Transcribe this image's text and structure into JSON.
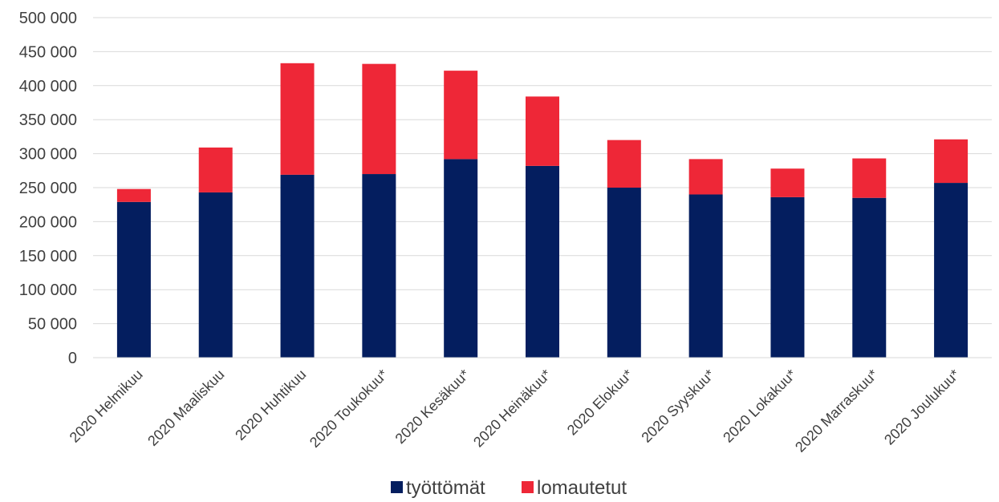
{
  "chart_data": {
    "type": "bar",
    "stacked": true,
    "title": "",
    "xlabel": "",
    "ylabel": "",
    "ylim": [
      0,
      500000
    ],
    "yticks": [
      "0",
      "50 000",
      "100 000",
      "150 000",
      "200 000",
      "250 000",
      "300 000",
      "350 000",
      "400 000",
      "450 000",
      "500 000"
    ],
    "grid": true,
    "legend_position": "bottom",
    "categories": [
      "2020 Helmikuu",
      "2020 Maaliskuu",
      "2020 Huhtikuu",
      "2020 Toukokuu*",
      "2020 Kesäkuu*",
      "2020 Heinäkuu*",
      "2020 Elokuu*",
      "2020 Syyskuu*",
      "2020 Lokakuu*",
      "2020 Marraskuu*",
      "2020 Joulukuu*"
    ],
    "series": [
      {
        "name": "työttömät",
        "color": "#041e5f",
        "values": [
          229000,
          243000,
          269000,
          270000,
          292000,
          282000,
          250000,
          240000,
          236000,
          235000,
          257000
        ]
      },
      {
        "name": "lomautetut",
        "color": "#ee2737",
        "values": [
          19000,
          66000,
          164000,
          162000,
          130000,
          102000,
          70000,
          52000,
          42000,
          58000,
          64000
        ]
      }
    ]
  }
}
